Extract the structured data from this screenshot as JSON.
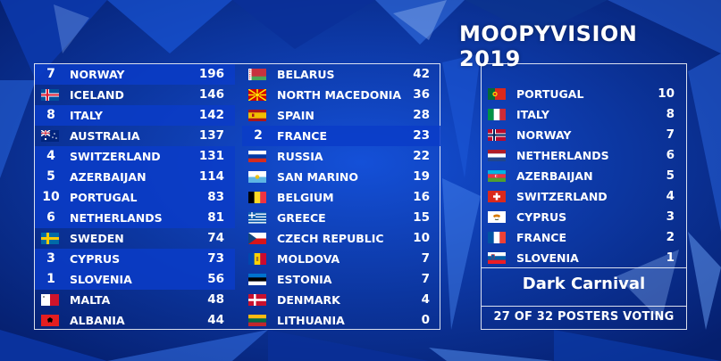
{
  "title": "MOOPYVISION 2019",
  "scoreboard": {
    "left": [
      {
        "rank": "7",
        "name": "NORWAY",
        "points": "196",
        "hl": "a"
      },
      {
        "rank": "",
        "flag": "iceland-flag-icon",
        "name": "ICELAND",
        "points": "146"
      },
      {
        "rank": "8",
        "name": "ITALY",
        "points": "142",
        "hl": "a"
      },
      {
        "rank": "",
        "flag": "australia-flag-icon",
        "name": "AUSTRALIA",
        "points": "137"
      },
      {
        "rank": "4",
        "name": "SWITZERLAND",
        "points": "131",
        "hl": "a"
      },
      {
        "rank": "5",
        "name": "AZERBAIJAN",
        "points": "114",
        "hl": "a"
      },
      {
        "rank": "10",
        "name": "PORTUGAL",
        "points": "83",
        "hl": "a"
      },
      {
        "rank": "6",
        "name": "NETHERLANDS",
        "points": "81",
        "hl": "a"
      },
      {
        "rank": "",
        "flag": "sweden-flag-icon",
        "name": "SWEDEN",
        "points": "74"
      },
      {
        "rank": "3",
        "name": "CYPRUS",
        "points": "73",
        "hl": "a"
      },
      {
        "rank": "1",
        "name": "SLOVENIA",
        "points": "56",
        "hl": "a"
      },
      {
        "rank": "",
        "flag": "malta-flag-icon",
        "name": "MALTA",
        "points": "48"
      },
      {
        "rank": "",
        "flag": "albania-flag-icon",
        "name": "ALBANIA",
        "points": "44"
      }
    ],
    "right": [
      {
        "rank": "",
        "flag": "belarus-flag-icon",
        "name": "BELARUS",
        "points": "42"
      },
      {
        "rank": "",
        "flag": "north-macedonia-flag-icon",
        "name": "NORTH MACEDONIA",
        "points": "36"
      },
      {
        "rank": "",
        "flag": "spain-flag-icon",
        "name": "SPAIN",
        "points": "28"
      },
      {
        "rank": "2",
        "name": "FRANCE",
        "points": "23",
        "hl": "a"
      },
      {
        "rank": "",
        "flag": "russia-flag-icon",
        "name": "RUSSIA",
        "points": "22"
      },
      {
        "rank": "",
        "flag": "san-marino-flag-icon",
        "name": "SAN MARINO",
        "points": "19"
      },
      {
        "rank": "",
        "flag": "belgium-flag-icon",
        "name": "BELGIUM",
        "points": "16"
      },
      {
        "rank": "",
        "flag": "greece-flag-icon",
        "name": "GREECE",
        "points": "15"
      },
      {
        "rank": "",
        "flag": "czech-republic-flag-icon",
        "name": "CZECH REPUBLIC",
        "points": "10"
      },
      {
        "rank": "",
        "flag": "moldova-flag-icon",
        "name": "MOLDOVA",
        "points": "7"
      },
      {
        "rank": "",
        "flag": "estonia-flag-icon",
        "name": "ESTONIA",
        "points": "7"
      },
      {
        "rank": "",
        "flag": "denmark-flag-icon",
        "name": "DENMARK",
        "points": "4"
      },
      {
        "rank": "",
        "flag": "lithuania-flag-icon",
        "name": "LITHUANIA",
        "points": "0"
      }
    ]
  },
  "voting_panel": {
    "items": [
      {
        "flag": "portugal-flag-icon",
        "name": "PORTUGAL",
        "points": "10"
      },
      {
        "flag": "italy-flag-icon",
        "name": "ITALY",
        "points": "8"
      },
      {
        "flag": "norway-flag-icon",
        "name": "NORWAY",
        "points": "7"
      },
      {
        "flag": "netherlands-flag-icon",
        "name": "NETHERLANDS",
        "points": "6"
      },
      {
        "flag": "azerbaijan-flag-icon",
        "name": "AZERBAIJAN",
        "points": "5"
      },
      {
        "flag": "switzerland-flag-icon",
        "name": "SWITZERLAND",
        "points": "4"
      },
      {
        "flag": "cyprus-flag-icon",
        "name": "CYPRUS",
        "points": "3"
      },
      {
        "flag": "france-flag-icon",
        "name": "FRANCE",
        "points": "2"
      },
      {
        "flag": "slovenia-flag-icon",
        "name": "SLOVENIA",
        "points": "1"
      }
    ],
    "voter": "Dark Carnival",
    "status": "27 OF 32 POSTERS VOTING"
  }
}
